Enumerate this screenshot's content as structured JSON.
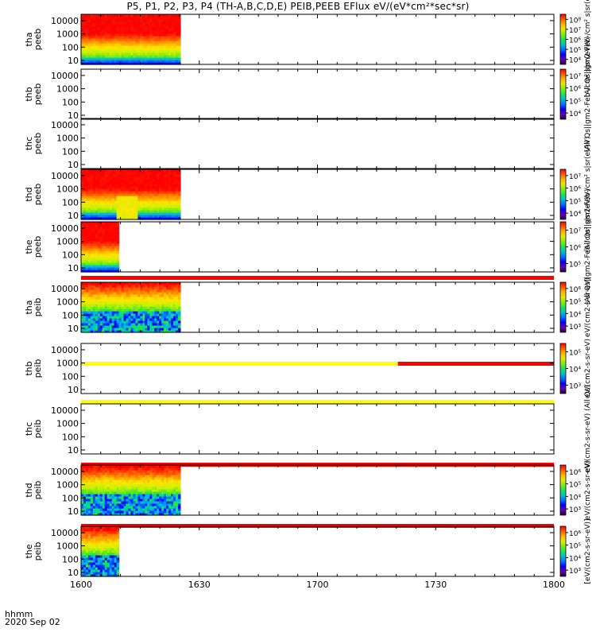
{
  "title": "P5, P1, P2, P3, P4 (TH-A,B,C,D,E) PEIB,PEEB EFlux eV/(eV*cm²*sec*sr)",
  "footer": {
    "hhmm": "hhmm",
    "date": "2020 Sep 02"
  },
  "x_ticks": [
    "1600",
    "1630",
    "1700",
    "1730",
    "1800"
  ],
  "y_ticks": [
    "10",
    "100",
    "1000",
    "10000"
  ],
  "panels": [
    {
      "label_top": "tha",
      "label_bot": "peeb",
      "data_end_frac": 0.21,
      "kind": "electron",
      "cbar_ticks": [
        "10⁴",
        "10⁵",
        "10⁶",
        "10⁷",
        "10⁸"
      ],
      "cbar_title": "(All Qs||gm2-Feb-/cm² s|sr(eV)V)",
      "stripe_before": null
    },
    {
      "label_top": "thb",
      "label_bot": "peeb",
      "data_end_frac": 0,
      "kind": "none",
      "cbar_ticks": [
        "10⁴",
        "10⁵",
        "10⁶",
        "10⁷"
      ],
      "cbar_title": "(All Qs||gm2-Feb-/cm² s|sr(eV)V)",
      "stripe_before": null
    },
    {
      "label_top": "thc",
      "label_bot": "peeb",
      "data_end_frac": 0,
      "kind": "none",
      "cbar_ticks": [],
      "cbar_title": "",
      "stripe_before": null
    },
    {
      "label_top": "thd",
      "label_bot": "peeb",
      "data_end_frac": 0.21,
      "kind": "electron",
      "cbar_ticks": [
        "10⁴",
        "10⁵",
        "10⁶",
        "10⁷"
      ],
      "cbar_title": "(All Qs||gm2-Feb-/cm² s|sr(eV)V)",
      "stripe_before": null
    },
    {
      "label_top": "the",
      "label_bot": "peeb",
      "data_end_frac": 0.08,
      "kind": "electron",
      "cbar_ticks": [
        "10⁵",
        "10⁶",
        "10⁷"
      ],
      "cbar_title": "(All Qs||gm2-Feb-/cm² s|sr(eV)V)",
      "stripe_before": null
    },
    {
      "label_top": "tha",
      "label_bot": "peib",
      "data_end_frac": 0.21,
      "kind": "ion",
      "cbar_ticks": [
        "10³",
        "10⁴",
        "10⁵",
        "10⁶"
      ],
      "cbar_title": "eV/(cm2-s-sr-eV)",
      "stripe_before": "red"
    },
    {
      "label_top": "thb",
      "label_bot": "peib",
      "data_end_frac": 0,
      "kind": "none",
      "cbar_ticks": [
        "10³",
        "10⁴",
        "10⁵"
      ],
      "cbar_title": "eV/(cm2-s-sr-eV)",
      "stripe_before": "yellow-red"
    },
    {
      "label_top": "thc",
      "label_bot": "peib",
      "data_end_frac": 0,
      "kind": "none",
      "cbar_ticks": [],
      "cbar_title": "eV/(cm2-s-sr-eV) (All Qs)",
      "stripe_before": "yellow"
    },
    {
      "label_top": "thd",
      "label_bot": "peib",
      "data_end_frac": 0.21,
      "kind": "ion",
      "cbar_ticks": [
        "10³",
        "10⁴",
        "10⁵",
        "10⁶"
      ],
      "cbar_title": "eV/(cm2-s-sr-eV)",
      "stripe_before": "red"
    },
    {
      "label_top": "the",
      "label_bot": "peib",
      "data_end_frac": 0.08,
      "kind": "ion",
      "cbar_ticks": [
        "10³",
        "10⁴",
        "10⁵",
        "10⁶"
      ],
      "cbar_title": "[eV/(cm2-s-sr-eV)]",
      "stripe_before": "red"
    }
  ],
  "chart_data": {
    "type": "heatmap",
    "title": "P5, P1, P2, P3, P4 (TH-A,B,C,D,E) PEIB,PEEB EFlux eV/(eV*cm²*sec*sr)",
    "x": [
      "1600",
      "1630",
      "1700",
      "1730",
      "1800"
    ],
    "y_scale": "log",
    "ylim": [
      5,
      30000
    ],
    "xlabel": "hhmm",
    "colorscale": "rainbow",
    "series": [
      {
        "name": "tha peeb",
        "data_until": "1625"
      },
      {
        "name": "thb peeb",
        "data_until": null
      },
      {
        "name": "thc peeb",
        "data_until": null
      },
      {
        "name": "thd peeb",
        "data_until": "1625"
      },
      {
        "name": "the peeb",
        "data_until": "1610"
      },
      {
        "name": "tha peib",
        "data_until": "1625"
      },
      {
        "name": "thb peib",
        "data_until": null
      },
      {
        "name": "thc peib",
        "data_until": null
      },
      {
        "name": "thd peib",
        "data_until": "1625"
      },
      {
        "name": "the peib",
        "data_until": "1610"
      }
    ]
  }
}
